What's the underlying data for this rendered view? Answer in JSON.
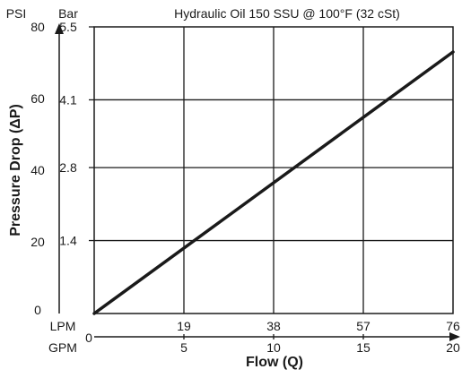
{
  "chart_data": {
    "type": "line",
    "title": "Hydraulic Oil 150 SSU @ 100°F (32 cSt)",
    "xlabel": "Flow (Q)",
    "ylabel": "Pressure Drop (ΔP)",
    "y_units": [
      "PSI",
      "Bar"
    ],
    "x_units": [
      "LPM",
      "GPM"
    ],
    "psi_ticks": [
      "0",
      "20",
      "40",
      "60",
      "80"
    ],
    "bar_ticks": [
      "1.4",
      "2.8",
      "4.1",
      "5.5"
    ],
    "bar_tick_values": [
      1.4,
      2.8,
      4.1,
      5.5
    ],
    "lpm_ticks": [
      "19",
      "38",
      "57",
      "76"
    ],
    "lpm_tick_values": [
      19,
      38,
      57,
      76
    ],
    "gpm_ticks": [
      "0",
      "5",
      "10",
      "15",
      "20"
    ],
    "gpm_tick_values": [
      0,
      5,
      10,
      15,
      20
    ],
    "xlim": [
      0,
      20
    ],
    "ylim": [
      0,
      80
    ],
    "grid": true,
    "series": [
      {
        "x": [
          0,
          20
        ],
        "y": [
          0,
          73
        ]
      }
    ]
  },
  "colors": {
    "line": "#1a1a1a",
    "grid": "#1a1a1a"
  }
}
